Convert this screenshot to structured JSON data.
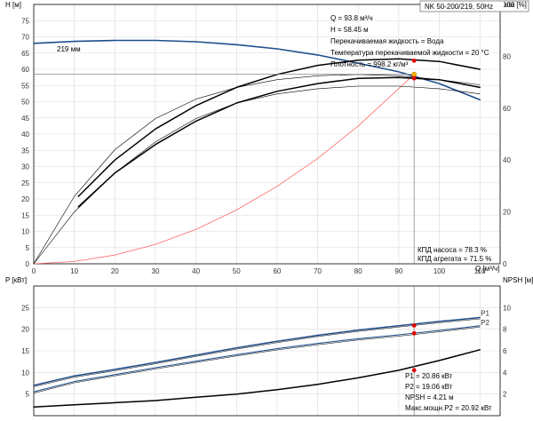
{
  "chart_data": [
    {
      "type": "line",
      "title": "NK 50-200/219, 50Hz",
      "xlabel": "Q [м³/ч]",
      "ylabel_left": "H [м]",
      "ylabel_right": "eta [%]",
      "xlim": [
        0,
        115
      ],
      "ylim_left": [
        0,
        80
      ],
      "ylim_right": [
        0,
        100
      ],
      "xticks": [
        0,
        10,
        20,
        30,
        40,
        50,
        60,
        70,
        80,
        90,
        100,
        110
      ],
      "yticks_left": [
        0,
        5,
        10,
        15,
        20,
        25,
        30,
        35,
        40,
        45,
        50,
        55,
        60,
        65,
        70,
        75
      ],
      "yticks_right": [
        0,
        20,
        40,
        60,
        80,
        100
      ],
      "grid": true,
      "impeller_label": "219 мм",
      "series": [
        {
          "name": "219 мм",
          "axis": "left",
          "color": "#1f4e8c",
          "x": [
            0,
            10,
            20,
            30,
            40,
            50,
            60,
            70,
            80,
            90,
            100,
            110
          ],
          "y": [
            68.0,
            68.6,
            68.9,
            68.9,
            68.5,
            67.6,
            66.3,
            64.4,
            61.9,
            59.2,
            55.6,
            50.6
          ]
        },
        {
          "name": "system",
          "axis": "left",
          "color": "#ff6666",
          "x": [
            0,
            10,
            20,
            30,
            40,
            50,
            60,
            70,
            80,
            93.8
          ],
          "y": [
            0,
            0.7,
            2.7,
            6.0,
            10.6,
            16.6,
            23.9,
            32.5,
            42.5,
            58.45
          ]
        },
        {
          "name": "КПД насоса",
          "axis": "right",
          "color": "#000000",
          "x": [
            11,
            20,
            30,
            40,
            50,
            60,
            70,
            80,
            90,
            100,
            110
          ],
          "y": [
            26,
            40,
            52,
            61,
            68,
            73,
            76.5,
            78.5,
            79,
            78,
            75
          ]
        },
        {
          "name": "КПД агрегата",
          "axis": "right",
          "color": "#000000",
          "x": [
            11,
            20,
            30,
            40,
            50,
            60,
            70,
            80,
            90,
            100,
            110
          ],
          "y": [
            22,
            35,
            46,
            55,
            62,
            66.5,
            69.5,
            71.5,
            71.8,
            71,
            68
          ]
        },
        {
          "name": "thin-a",
          "axis": "right",
          "color": "#000000",
          "x": [
            0,
            10,
            20,
            30,
            40,
            50,
            60,
            70,
            80,
            90,
            100,
            110
          ],
          "y": [
            0,
            26,
            44,
            56,
            63.5,
            68,
            71,
            72.5,
            73,
            72.5,
            71,
            69
          ]
        },
        {
          "name": "thin-b",
          "axis": "right",
          "color": "#000000",
          "x": [
            0,
            10,
            20,
            30,
            40,
            50,
            60,
            70,
            80,
            90,
            100,
            110
          ],
          "y": [
            0,
            20,
            35,
            47,
            56,
            62,
            65.5,
            67.5,
            68.5,
            68.5,
            67.5,
            65.5
          ]
        }
      ],
      "duty_point": {
        "q": 93.8,
        "h": 58.45,
        "eta_pump": 78.3,
        "eta_unit": 71.5
      },
      "info_lines": [
        "Q = 93.8 м³/ч",
        "H = 58.45 м",
        "Перекачиваемая жидкость = Вода",
        "Температура перекачиваемой жидкости = 20 °C",
        "Плотность = 998.2 кг/м³"
      ],
      "eff_lines": [
        "КПД насоса = 78.3 %",
        "КПД агрегата = 71.5 %"
      ]
    },
    {
      "type": "line",
      "xlabel": "",
      "ylabel_left": "P [кВт]",
      "ylabel_right": "NPSH [м]",
      "xlim": [
        0,
        115
      ],
      "ylim_left": [
        0,
        30
      ],
      "ylim_right": [
        0,
        12
      ],
      "yticks_left": [
        5,
        10,
        15,
        20,
        25
      ],
      "yticks_right": [
        2,
        4,
        6,
        8,
        10
      ],
      "grid": true,
      "series": [
        {
          "name": "P1",
          "axis": "left",
          "color": "#1f4e8c",
          "x": [
            0,
            10,
            20,
            30,
            40,
            50,
            60,
            70,
            80,
            90,
            100,
            110
          ],
          "y": [
            7.0,
            9.2,
            10.7,
            12.3,
            14.0,
            15.7,
            17.2,
            18.6,
            19.8,
            20.8,
            21.8,
            22.7
          ]
        },
        {
          "name": "P2",
          "axis": "left",
          "color": "#1f4e8c",
          "x": [
            0,
            10,
            20,
            30,
            40,
            50,
            60,
            70,
            80,
            90,
            100,
            110
          ],
          "y": [
            5.5,
            7.9,
            9.5,
            11.1,
            12.6,
            14.1,
            15.5,
            16.7,
            17.8,
            18.7,
            19.7,
            20.8
          ]
        },
        {
          "name": "NPSH",
          "axis": "right",
          "color": "#000000",
          "x": [
            0,
            10,
            20,
            30,
            40,
            50,
            60,
            70,
            80,
            90,
            100,
            110
          ],
          "y": [
            0.8,
            1.0,
            1.2,
            1.4,
            1.7,
            2.0,
            2.4,
            2.9,
            3.5,
            4.2,
            5.1,
            6.1
          ]
        }
      ],
      "duty_point": {
        "q": 93.8,
        "p1": 20.86,
        "p2": 19.06,
        "npsh": 4.21
      },
      "info_lines": [
        "P1 = 20.86 кВт",
        "P2 = 19.06 кВт",
        "NPSH = 4.21 м",
        "Макс.мощн.P2 = 20.92 кВт"
      ]
    }
  ],
  "colors": {
    "curve_blue": "#1f4e8c",
    "system_red": "#ff6666",
    "duty_marker": "#ffb000",
    "duty_red": "#e00000",
    "grid": "#d9d9d9"
  }
}
